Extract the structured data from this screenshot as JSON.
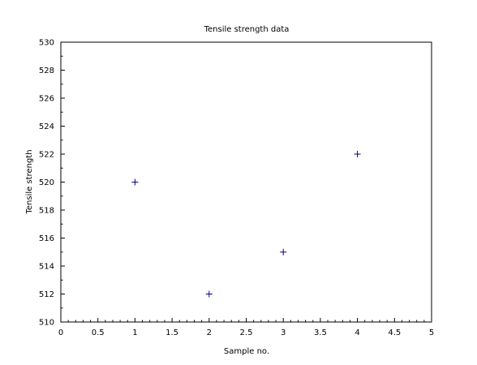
{
  "chart_data": {
    "type": "scatter",
    "title": "Tensile strength data",
    "xlabel": "Sample no.",
    "ylabel": "Tensile strength",
    "xlim": [
      0,
      5
    ],
    "ylim": [
      510,
      530
    ],
    "xticks": [
      "0",
      "0.5",
      "1",
      "1.5",
      "2",
      "2.5",
      "3",
      "3.5",
      "4",
      "4.5",
      "5"
    ],
    "yticks": [
      "510",
      "512",
      "514",
      "516",
      "518",
      "520",
      "522",
      "524",
      "526",
      "528",
      "530"
    ],
    "grid": false,
    "marker": "+",
    "marker_color": "#000080",
    "series": [
      {
        "x": [
          1,
          2,
          3,
          4
        ],
        "y": [
          520,
          512,
          515,
          522
        ]
      }
    ]
  }
}
